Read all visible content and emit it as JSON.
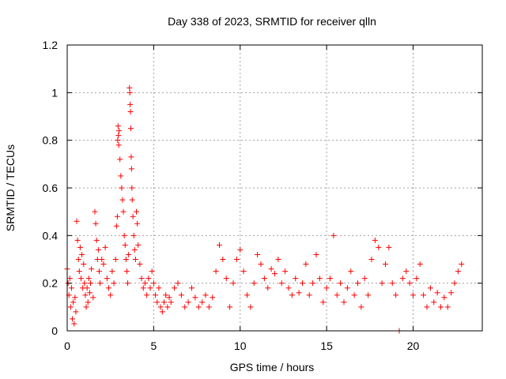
{
  "chart_data": {
    "type": "scatter",
    "title": "Day 338 of 2023, SRMTID for receiver qlln",
    "xlabel": "GPS time / hours",
    "ylabel": "SRMTID / TECUs",
    "xlim": [
      0,
      24
    ],
    "ylim": [
      0,
      1.2
    ],
    "grid": true,
    "marker": "+",
    "colors": {
      "points": "#ff0000",
      "grid": "#a0a0a0",
      "axis": "#000000"
    },
    "x_ticks": [
      {
        "value": 0,
        "label": "0"
      },
      {
        "value": 5,
        "label": "5"
      },
      {
        "value": 10,
        "label": "10"
      },
      {
        "value": 15,
        "label": "15"
      },
      {
        "value": 20,
        "label": "20"
      }
    ],
    "y_ticks": [
      {
        "value": 0,
        "label": "0"
      },
      {
        "value": 0.2,
        "label": "0.2"
      },
      {
        "value": 0.4,
        "label": "0.4"
      },
      {
        "value": 0.6,
        "label": "0.6"
      },
      {
        "value": 0.8,
        "label": "0.8"
      },
      {
        "value": 1.0,
        "label": "1"
      },
      {
        "value": 1.2,
        "label": "1.2"
      }
    ],
    "series": [
      {
        "name": "SRMTID",
        "points": [
          [
            0.0,
            0.26
          ],
          [
            0.05,
            0.2
          ],
          [
            0.1,
            0.15
          ],
          [
            0.15,
            0.22
          ],
          [
            0.2,
            0.1
          ],
          [
            0.25,
            0.18
          ],
          [
            0.3,
            0.05
          ],
          [
            0.35,
            0.12
          ],
          [
            0.4,
            0.03
          ],
          [
            0.45,
            0.14
          ],
          [
            0.5,
            0.08
          ],
          [
            0.55,
            0.46
          ],
          [
            0.6,
            0.38
          ],
          [
            0.65,
            0.3
          ],
          [
            0.7,
            0.25
          ],
          [
            0.75,
            0.35
          ],
          [
            0.8,
            0.22
          ],
          [
            0.85,
            0.32
          ],
          [
            0.9,
            0.18
          ],
          [
            0.95,
            0.28
          ],
          [
            1.0,
            0.2
          ],
          [
            1.05,
            0.15
          ],
          [
            1.1,
            0.1
          ],
          [
            1.15,
            0.18
          ],
          [
            1.2,
            0.12
          ],
          [
            1.25,
            0.22
          ],
          [
            1.3,
            0.16
          ],
          [
            1.35,
            0.2
          ],
          [
            1.4,
            0.26
          ],
          [
            1.5,
            0.14
          ],
          [
            1.6,
            0.5
          ],
          [
            1.65,
            0.45
          ],
          [
            1.7,
            0.38
          ],
          [
            1.75,
            0.3
          ],
          [
            1.8,
            0.34
          ],
          [
            1.85,
            0.25
          ],
          [
            1.9,
            0.2
          ],
          [
            2.0,
            0.3
          ],
          [
            2.1,
            0.28
          ],
          [
            2.2,
            0.35
          ],
          [
            2.3,
            0.22
          ],
          [
            2.4,
            0.18
          ],
          [
            2.5,
            0.15
          ],
          [
            2.6,
            0.25
          ],
          [
            2.7,
            0.2
          ],
          [
            2.8,
            0.3
          ],
          [
            2.85,
            0.44
          ],
          [
            2.9,
            0.48
          ],
          [
            2.92,
            0.8
          ],
          [
            2.94,
            0.86
          ],
          [
            2.96,
            0.82
          ],
          [
            2.98,
            0.78
          ],
          [
            3.0,
            0.84
          ],
          [
            3.05,
            0.72
          ],
          [
            3.1,
            0.65
          ],
          [
            3.15,
            0.6
          ],
          [
            3.2,
            0.55
          ],
          [
            3.25,
            0.5
          ],
          [
            3.3,
            0.4
          ],
          [
            3.35,
            0.36
          ],
          [
            3.4,
            0.3
          ],
          [
            3.45,
            0.25
          ],
          [
            3.5,
            0.2
          ],
          [
            3.55,
            0.32
          ],
          [
            3.6,
            1.02
          ],
          [
            3.62,
            1.0
          ],
          [
            3.64,
            0.95
          ],
          [
            3.66,
            0.92
          ],
          [
            3.68,
            0.85
          ],
          [
            3.7,
            0.73
          ],
          [
            3.72,
            0.68
          ],
          [
            3.74,
            0.6
          ],
          [
            3.76,
            0.55
          ],
          [
            3.8,
            0.48
          ],
          [
            3.85,
            0.4
          ],
          [
            3.9,
            0.34
          ],
          [
            3.95,
            0.3
          ],
          [
            4.0,
            0.5
          ],
          [
            4.05,
            0.45
          ],
          [
            4.1,
            0.36
          ],
          [
            4.2,
            0.28
          ],
          [
            4.3,
            0.22
          ],
          [
            4.4,
            0.18
          ],
          [
            4.5,
            0.2
          ],
          [
            4.6,
            0.15
          ],
          [
            4.7,
            0.22
          ],
          [
            4.8,
            0.18
          ],
          [
            4.9,
            0.25
          ],
          [
            5.0,
            0.2
          ],
          [
            5.1,
            0.15
          ],
          [
            5.2,
            0.12
          ],
          [
            5.3,
            0.18
          ],
          [
            5.4,
            0.1
          ],
          [
            5.5,
            0.08
          ],
          [
            5.6,
            0.12
          ],
          [
            5.7,
            0.15
          ],
          [
            5.8,
            0.1
          ],
          [
            5.9,
            0.14
          ],
          [
            6.0,
            0.12
          ],
          [
            6.2,
            0.18
          ],
          [
            6.4,
            0.2
          ],
          [
            6.6,
            0.15
          ],
          [
            6.8,
            0.1
          ],
          [
            7.0,
            0.12
          ],
          [
            7.2,
            0.18
          ],
          [
            7.4,
            0.14
          ],
          [
            7.6,
            0.1
          ],
          [
            7.8,
            0.12
          ],
          [
            8.0,
            0.15
          ],
          [
            8.2,
            0.1
          ],
          [
            8.4,
            0.14
          ],
          [
            8.6,
            0.25
          ],
          [
            8.8,
            0.36
          ],
          [
            9.0,
            0.3
          ],
          [
            9.2,
            0.22
          ],
          [
            9.4,
            0.1
          ],
          [
            9.6,
            0.2
          ],
          [
            9.8,
            0.3
          ],
          [
            10.0,
            0.34
          ],
          [
            10.2,
            0.25
          ],
          [
            10.4,
            0.15
          ],
          [
            10.6,
            0.1
          ],
          [
            10.8,
            0.2
          ],
          [
            11.0,
            0.32
          ],
          [
            11.2,
            0.28
          ],
          [
            11.4,
            0.22
          ],
          [
            11.6,
            0.18
          ],
          [
            11.8,
            0.26
          ],
          [
            12.0,
            0.24
          ],
          [
            12.2,
            0.3
          ],
          [
            12.4,
            0.2
          ],
          [
            12.6,
            0.25
          ],
          [
            12.8,
            0.18
          ],
          [
            13.0,
            0.15
          ],
          [
            13.2,
            0.22
          ],
          [
            13.4,
            0.16
          ],
          [
            13.6,
            0.2
          ],
          [
            13.8,
            0.28
          ],
          [
            14.0,
            0.15
          ],
          [
            14.2,
            0.2
          ],
          [
            14.4,
            0.32
          ],
          [
            14.6,
            0.22
          ],
          [
            14.8,
            0.12
          ],
          [
            15.0,
            0.18
          ],
          [
            15.2,
            0.22
          ],
          [
            15.4,
            0.4
          ],
          [
            15.6,
            0.15
          ],
          [
            15.8,
            0.2
          ],
          [
            16.0,
            0.12
          ],
          [
            16.2,
            0.18
          ],
          [
            16.4,
            0.25
          ],
          [
            16.6,
            0.15
          ],
          [
            16.8,
            0.2
          ],
          [
            17.0,
            0.1
          ],
          [
            17.2,
            0.22
          ],
          [
            17.4,
            0.15
          ],
          [
            17.6,
            0.3
          ],
          [
            17.8,
            0.38
          ],
          [
            18.0,
            0.35
          ],
          [
            18.2,
            0.2
          ],
          [
            18.4,
            0.28
          ],
          [
            18.6,
            0.35
          ],
          [
            18.8,
            0.2
          ],
          [
            19.0,
            0.15
          ],
          [
            19.2,
            0.0
          ],
          [
            19.4,
            0.22
          ],
          [
            19.6,
            0.25
          ],
          [
            19.8,
            0.2
          ],
          [
            20.0,
            0.15
          ],
          [
            20.2,
            0.22
          ],
          [
            20.4,
            0.28
          ],
          [
            20.6,
            0.15
          ],
          [
            20.8,
            0.1
          ],
          [
            21.0,
            0.18
          ],
          [
            21.2,
            0.12
          ],
          [
            21.4,
            0.16
          ],
          [
            21.6,
            0.1
          ],
          [
            21.8,
            0.14
          ],
          [
            22.0,
            0.1
          ],
          [
            22.2,
            0.16
          ],
          [
            22.4,
            0.2
          ],
          [
            22.6,
            0.25
          ],
          [
            22.8,
            0.28
          ]
        ]
      }
    ]
  }
}
